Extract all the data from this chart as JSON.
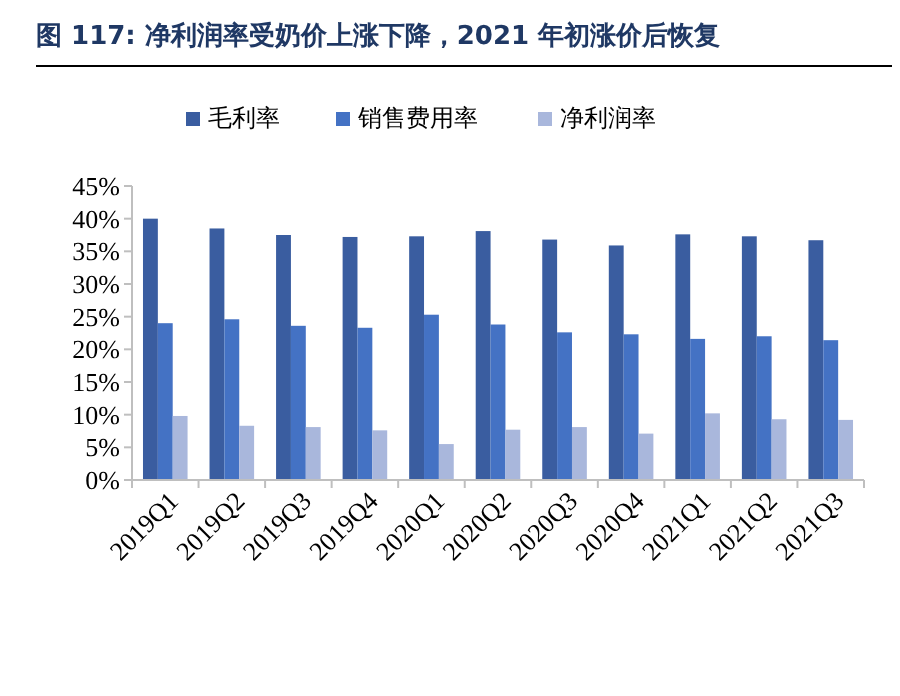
{
  "chart_data": {
    "type": "bar",
    "title": "图 117: 净利润率受奶价上涨下降，2021 年初涨价后恢复",
    "categories": [
      "2019Q1",
      "2019Q2",
      "2019Q3",
      "2019Q4",
      "2020Q1",
      "2020Q2",
      "2020Q3",
      "2020Q4",
      "2021Q1",
      "2021Q2",
      "2021Q3"
    ],
    "series": [
      {
        "name": "毛利率",
        "color": "#3a5da0",
        "values": [
          40,
          38.5,
          37.5,
          37.2,
          37.3,
          38.1,
          36.8,
          35.9,
          37.6,
          37.3,
          36.7
        ]
      },
      {
        "name": "销售费用率",
        "color": "#4472c4",
        "values": [
          24,
          24.6,
          23.6,
          23.3,
          25.3,
          23.8,
          22.6,
          22.3,
          21.6,
          22,
          21.4
        ]
      },
      {
        "name": "净利润率",
        "color": "#a9b7dc",
        "values": [
          9.8,
          8.3,
          8.1,
          7.6,
          5.5,
          7.7,
          8.1,
          7.1,
          10.2,
          9.3,
          9.2
        ]
      }
    ],
    "ylim": [
      0,
      45
    ],
    "yticks": [
      {
        "value": 0,
        "label": "0%"
      },
      {
        "value": 5,
        "label": "5%"
      },
      {
        "value": 10,
        "label": "10%"
      },
      {
        "value": 15,
        "label": "15%"
      },
      {
        "value": 20,
        "label": "20%"
      },
      {
        "value": 25,
        "label": "25%"
      },
      {
        "value": 30,
        "label": "30%"
      },
      {
        "value": 35,
        "label": "35%"
      },
      {
        "value": 40,
        "label": "40%"
      },
      {
        "value": 45,
        "label": "45%"
      }
    ],
    "grid": false,
    "legend": "top"
  }
}
